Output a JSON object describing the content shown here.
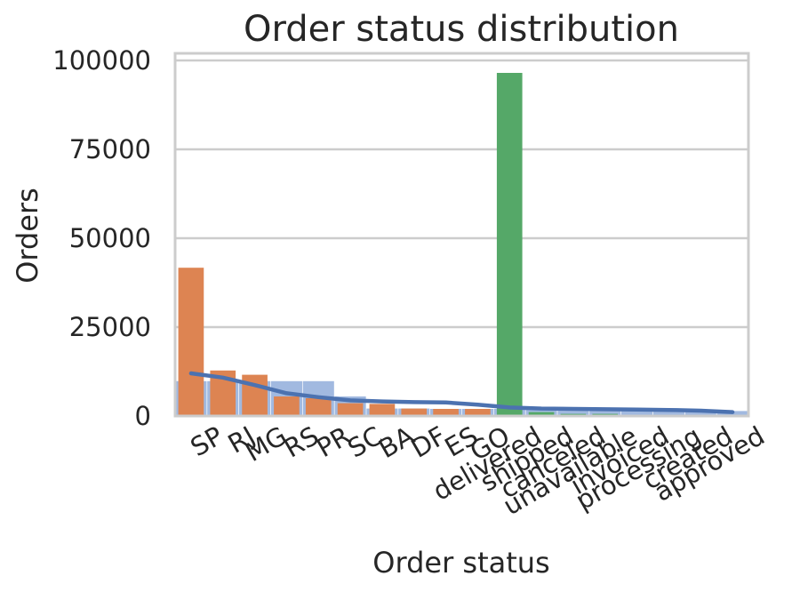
{
  "chart_data": {
    "type": "bar",
    "title": "Order status distribution",
    "xlabel": "Order status",
    "ylabel": "Orders",
    "ylim": [
      0,
      102000
    ],
    "yticks": [
      "0",
      "25000",
      "50000",
      "75000",
      "100000"
    ],
    "grid": true,
    "legend": "none",
    "categories": [
      "SP",
      "RJ",
      "MG",
      "RS",
      "PR",
      "SC",
      "BA",
      "DF",
      "ES",
      "GO",
      "delivered",
      "shipped",
      "canceled",
      "unavailable",
      "invoiced",
      "processing",
      "created",
      "approved"
    ],
    "series": [
      {
        "color": "#dd8452",
        "values": [
          41700,
          12800,
          11600,
          5500,
          5000,
          3600,
          3400,
          2100,
          2000,
          2000,
          null,
          null,
          null,
          null,
          null,
          null,
          null,
          null
        ]
      },
      {
        "color": "#55a868",
        "values": [
          null,
          null,
          null,
          null,
          null,
          null,
          null,
          null,
          null,
          null,
          96500,
          1100,
          600,
          600,
          300,
          300,
          10,
          5
        ]
      }
    ],
    "background_bars": {
      "color": "#a1b9e0",
      "values": [
        9800,
        9800,
        9800,
        9800,
        9800,
        5500,
        2100,
        2100,
        2000,
        2000,
        2000,
        2000,
        2000,
        2000,
        1400,
        1400,
        1400,
        1400
      ]
    },
    "line": {
      "color": "#4c72b0",
      "values": [
        12000,
        10800,
        8700,
        6400,
        5300,
        4400,
        4100,
        3900,
        3800,
        3200,
        2400,
        2100,
        2000,
        1900,
        1800,
        1700,
        1500,
        1100
      ]
    }
  }
}
